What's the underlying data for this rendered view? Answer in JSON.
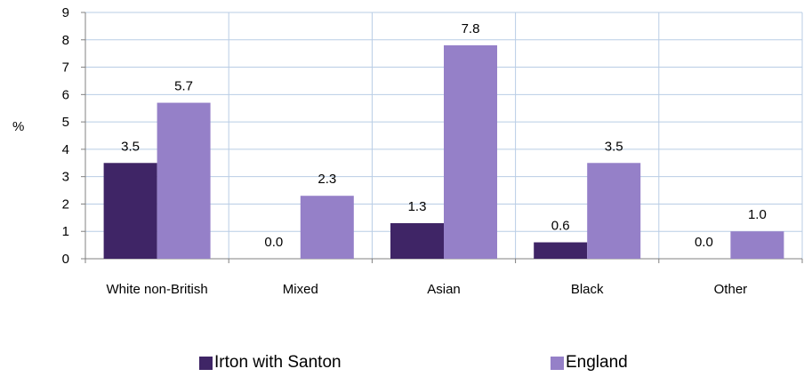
{
  "chart_data": {
    "type": "bar",
    "ylabel": "%",
    "ylim": [
      0,
      9
    ],
    "yticks": [
      "0",
      "1",
      "2",
      "3",
      "4",
      "5",
      "6",
      "7",
      "8",
      "9"
    ],
    "grid": true,
    "legend_position": "bottom",
    "categories": [
      "White non-British",
      "Mixed",
      "Asian",
      "Black",
      "Other"
    ],
    "series": [
      {
        "name": "Irton with Santon",
        "color": "#3f2566",
        "values": [
          3.5,
          0.0,
          1.3,
          0.6,
          0.0
        ],
        "labels": [
          "3.5",
          "0.0",
          "1.3",
          "0.6",
          "0.0"
        ]
      },
      {
        "name": "England",
        "color": "#9580c8",
        "values": [
          5.7,
          2.3,
          7.8,
          3.5,
          1.0
        ],
        "labels": [
          "5.7",
          "2.3",
          "7.8",
          "3.5",
          "1.0"
        ]
      }
    ]
  }
}
